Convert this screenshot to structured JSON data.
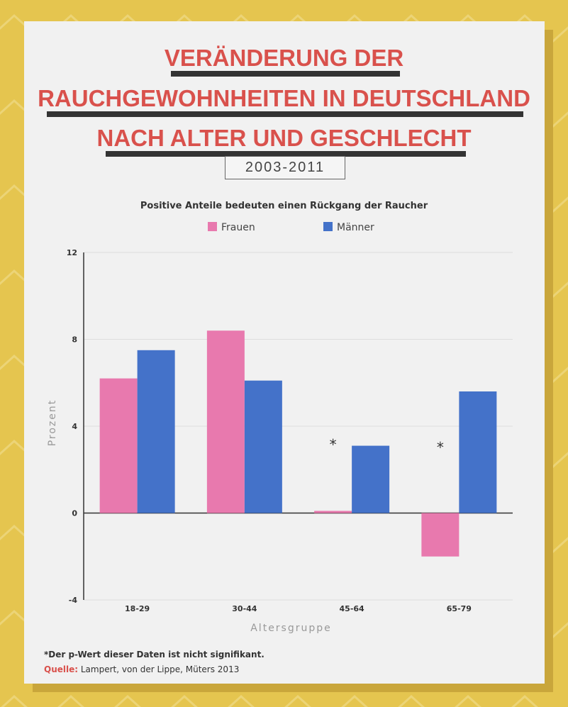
{
  "title": {
    "line1": "VERÄNDERUNG DER",
    "line2": "RAUCHGEWOHNHEITEN IN DEUTSCHLAND",
    "line3": "NACH ALTER UND GESCHLECHT"
  },
  "years": "2003-2011",
  "footnote": "*Der p-Wert dieser Daten ist nicht signifikant.",
  "source_label": "Quelle:",
  "source_text": "Lampert, von der Lippe, Müters 2013",
  "colors": {
    "background": "#e5c54f",
    "card": "#f1f1f1",
    "title": "#d9514c",
    "frauen": "#e879ae",
    "maenner": "#4472c9"
  },
  "chart_data": {
    "type": "bar",
    "title": "Positive Anteile bedeuten einen Rückgang der Raucher",
    "xlabel": "Altersgruppe",
    "ylabel": "Prozent",
    "categories": [
      "18-29",
      "30-44",
      "45-64",
      "65-79"
    ],
    "series": [
      {
        "name": "Frauen",
        "color": "#e879ae",
        "values": [
          6.2,
          8.4,
          0.1,
          -2.0
        ]
      },
      {
        "name": "Männer",
        "color": "#4472c9",
        "values": [
          7.5,
          6.1,
          3.1,
          5.6
        ]
      }
    ],
    "yticks": [
      12,
      8,
      4,
      0,
      -4
    ],
    "ylim": [
      -4,
      12
    ],
    "grid": true,
    "legend_position": "top",
    "annotations": [
      {
        "category": "45-64",
        "text": "*"
      },
      {
        "category": "65-79",
        "text": "*"
      }
    ]
  }
}
